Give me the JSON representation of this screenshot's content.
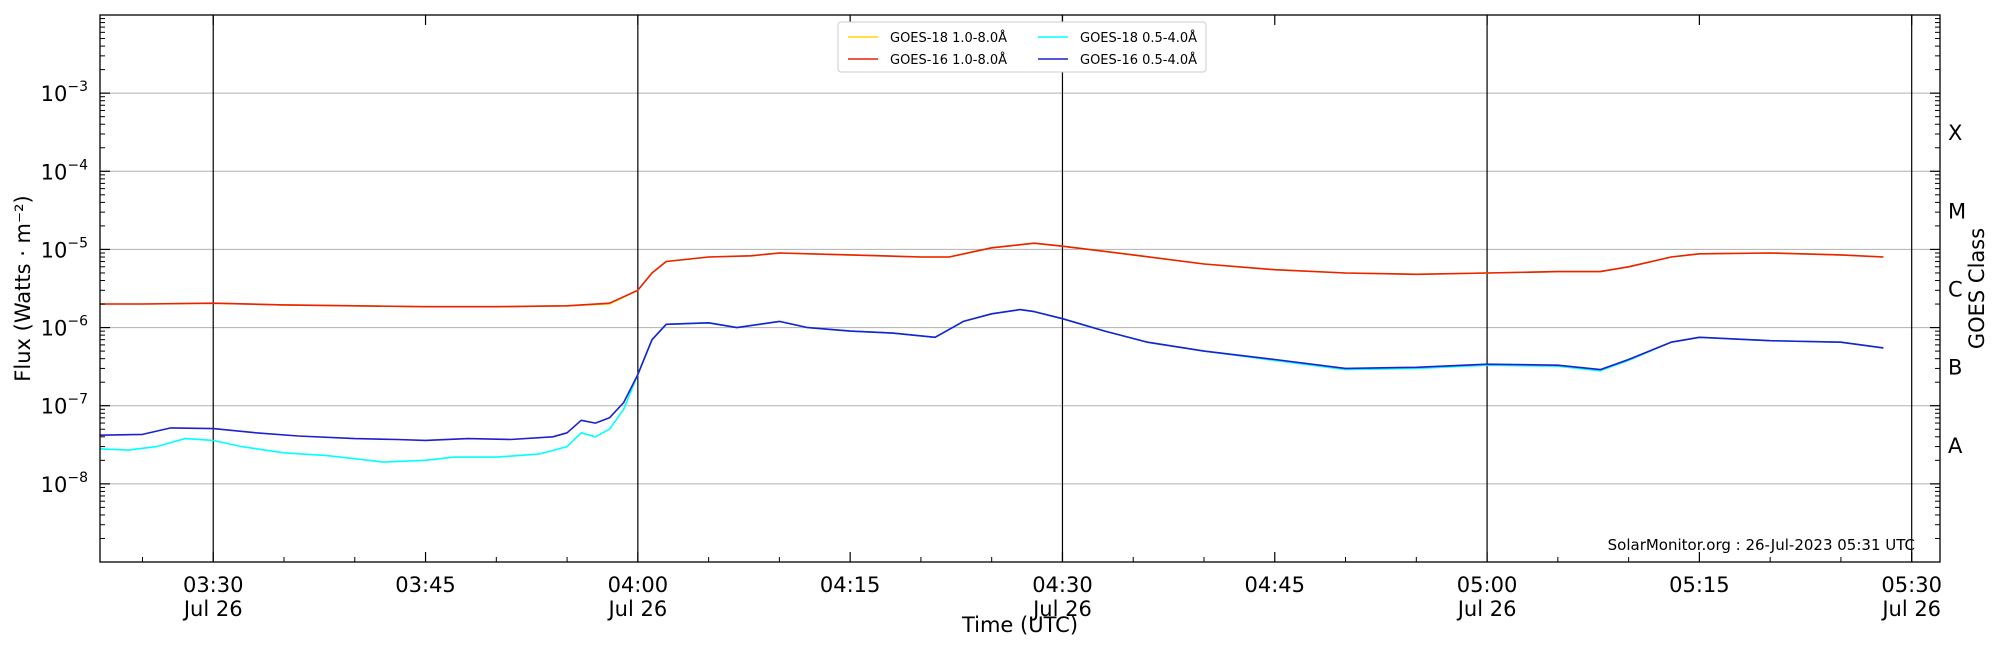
{
  "chart_data": {
    "type": "line",
    "xlabel": "Time (UTC)",
    "ylabel": "Flux (Watts · m⁻²)",
    "right_ylabel": "GOES Class",
    "credit": "SolarMonitor.org : 26-Jul-2023 05:31 UTC",
    "x_range": [
      "03:22",
      "05:32"
    ],
    "ylim": [
      1e-09,
      0.01
    ],
    "y_scale": "log",
    "grid": "horizontal at decades",
    "legend_position": "top-center",
    "x_ticks": [
      {
        "t": "03:30",
        "line1": "03:30",
        "line2": "Jul 26"
      },
      {
        "t": "03:45",
        "line1": "03:45",
        "line2": ""
      },
      {
        "t": "04:00",
        "line1": "04:00",
        "line2": "Jul 26"
      },
      {
        "t": "04:15",
        "line1": "04:15",
        "line2": ""
      },
      {
        "t": "04:30",
        "line1": "04:30",
        "line2": "Jul 26"
      },
      {
        "t": "04:45",
        "line1": "04:45",
        "line2": ""
      },
      {
        "t": "05:00",
        "line1": "05:00",
        "line2": "Jul 26"
      },
      {
        "t": "05:15",
        "line1": "05:15",
        "line2": ""
      },
      {
        "t": "05:30",
        "line1": "05:30",
        "line2": "Jul 26"
      }
    ],
    "day_lines": [
      "03:30",
      "04:00",
      "04:30",
      "05:00",
      "05:30"
    ],
    "y_ticks": [
      {
        "value": 1e-08,
        "base": "10",
        "exp": "−8"
      },
      {
        "value": 1e-07,
        "base": "10",
        "exp": "−7"
      },
      {
        "value": 1e-06,
        "base": "10",
        "exp": "−6"
      },
      {
        "value": 1e-05,
        "base": "10",
        "exp": "−5"
      },
      {
        "value": 0.0001,
        "base": "10",
        "exp": "−4"
      },
      {
        "value": 0.001,
        "base": "10",
        "exp": "−3"
      }
    ],
    "classes": [
      {
        "label": "A",
        "value": 3.16e-08
      },
      {
        "label": "B",
        "value": 3.16e-07
      },
      {
        "label": "C",
        "value": 3.16e-06
      },
      {
        "label": "M",
        "value": 3.16e-05
      },
      {
        "label": "X",
        "value": 0.000316
      }
    ],
    "series": [
      {
        "name": "GOES-18 1.0-8.0Å",
        "color": "#FFD700",
        "points": [
          [
            "03:22",
            2e-06
          ],
          [
            "03:25",
            2e-06
          ],
          [
            "03:30",
            2.05e-06
          ],
          [
            "03:35",
            1.95e-06
          ],
          [
            "03:40",
            1.9e-06
          ],
          [
            "03:45",
            1.85e-06
          ],
          [
            "03:50",
            1.85e-06
          ],
          [
            "03:55",
            1.9e-06
          ],
          [
            "03:58",
            2e-06
          ],
          [
            "04:00",
            3e-06
          ],
          [
            "04:01",
            5e-06
          ],
          [
            "04:02",
            7e-06
          ],
          [
            "04:05",
            8e-06
          ],
          [
            "04:08",
            8.3e-06
          ],
          [
            "04:10",
            9e-06
          ],
          [
            "04:15",
            8.5e-06
          ],
          [
            "04:20",
            8e-06
          ],
          [
            "04:22",
            8e-06
          ],
          [
            "04:25",
            1.05e-05
          ],
          [
            "04:28",
            1.2e-05
          ],
          [
            "04:30",
            1.1e-05
          ],
          [
            "04:35",
            8.5e-06
          ],
          [
            "04:40",
            6.5e-06
          ],
          [
            "04:45",
            5.5e-06
          ],
          [
            "04:50",
            5e-06
          ],
          [
            "04:55",
            4.8e-06
          ],
          [
            "05:00",
            5e-06
          ],
          [
            "05:05",
            5.2e-06
          ],
          [
            "05:08",
            5.2e-06
          ],
          [
            "05:10",
            6e-06
          ],
          [
            "05:13",
            8e-06
          ],
          [
            "05:15",
            8.8e-06
          ],
          [
            "05:20",
            9e-06
          ],
          [
            "05:25",
            8.5e-06
          ],
          [
            "05:28",
            8e-06
          ]
        ]
      },
      {
        "name": "GOES-18 0.5-4.0Å",
        "color": "#00FFFF",
        "points": [
          [
            "03:22",
            2.8e-08
          ],
          [
            "03:24",
            2.7e-08
          ],
          [
            "03:26",
            3e-08
          ],
          [
            "03:28",
            3.8e-08
          ],
          [
            "03:30",
            3.6e-08
          ],
          [
            "03:32",
            3e-08
          ],
          [
            "03:35",
            2.5e-08
          ],
          [
            "03:38",
            2.3e-08
          ],
          [
            "03:40",
            2.1e-08
          ],
          [
            "03:42",
            1.9e-08
          ],
          [
            "03:45",
            2e-08
          ],
          [
            "03:47",
            2.2e-08
          ],
          [
            "03:50",
            2.2e-08
          ],
          [
            "03:53",
            2.4e-08
          ],
          [
            "03:55",
            3e-08
          ],
          [
            "03:56",
            4.5e-08
          ],
          [
            "03:57",
            4e-08
          ],
          [
            "03:58",
            5e-08
          ],
          [
            "03:59",
            9e-08
          ],
          [
            "04:00",
            2.5e-07
          ],
          [
            "04:01",
            7e-07
          ],
          [
            "04:02",
            1.1e-06
          ],
          [
            "04:05",
            1.15e-06
          ],
          [
            "04:07",
            1e-06
          ],
          [
            "04:10",
            1.2e-06
          ],
          [
            "04:12",
            1e-06
          ],
          [
            "04:15",
            9e-07
          ],
          [
            "04:18",
            8.5e-07
          ],
          [
            "04:21",
            7.5e-07
          ],
          [
            "04:23",
            1.2e-06
          ],
          [
            "04:25",
            1.5e-06
          ],
          [
            "04:27",
            1.7e-06
          ],
          [
            "04:28",
            1.6e-06
          ],
          [
            "04:30",
            1.3e-06
          ],
          [
            "04:33",
            9e-07
          ],
          [
            "04:36",
            6.5e-07
          ],
          [
            "04:40",
            5e-07
          ],
          [
            "04:45",
            3.8e-07
          ],
          [
            "04:50",
            2.9e-07
          ],
          [
            "04:55",
            3e-07
          ],
          [
            "05:00",
            3.3e-07
          ],
          [
            "05:05",
            3.2e-07
          ],
          [
            "05:08",
            2.8e-07
          ],
          [
            "05:10",
            3.8e-07
          ],
          [
            "05:13",
            6.5e-07
          ],
          [
            "05:15",
            7.5e-07
          ],
          [
            "05:20",
            6.8e-07
          ],
          [
            "05:25",
            6.5e-07
          ],
          [
            "05:28",
            5.5e-07
          ]
        ]
      },
      {
        "name": "GOES-16 1.0-8.0Å",
        "color": "#E8220A",
        "points": [
          [
            "03:22",
            2e-06
          ],
          [
            "03:25",
            2e-06
          ],
          [
            "03:30",
            2.05e-06
          ],
          [
            "03:35",
            1.95e-06
          ],
          [
            "03:40",
            1.9e-06
          ],
          [
            "03:45",
            1.85e-06
          ],
          [
            "03:50",
            1.85e-06
          ],
          [
            "03:55",
            1.9e-06
          ],
          [
            "03:58",
            2.05e-06
          ],
          [
            "04:00",
            3e-06
          ],
          [
            "04:01",
            5e-06
          ],
          [
            "04:02",
            7e-06
          ],
          [
            "04:05",
            8e-06
          ],
          [
            "04:08",
            8.3e-06
          ],
          [
            "04:10",
            9e-06
          ],
          [
            "04:15",
            8.5e-06
          ],
          [
            "04:20",
            8e-06
          ],
          [
            "04:22",
            8e-06
          ],
          [
            "04:25",
            1.05e-05
          ],
          [
            "04:28",
            1.2e-05
          ],
          [
            "04:30",
            1.1e-05
          ],
          [
            "04:35",
            8.5e-06
          ],
          [
            "04:40",
            6.5e-06
          ],
          [
            "04:45",
            5.5e-06
          ],
          [
            "04:50",
            5e-06
          ],
          [
            "04:55",
            4.8e-06
          ],
          [
            "05:00",
            5e-06
          ],
          [
            "05:05",
            5.2e-06
          ],
          [
            "05:08",
            5.2e-06
          ],
          [
            "05:10",
            6e-06
          ],
          [
            "05:13",
            8e-06
          ],
          [
            "05:15",
            8.8e-06
          ],
          [
            "05:20",
            9e-06
          ],
          [
            "05:25",
            8.5e-06
          ],
          [
            "05:28",
            8e-06
          ]
        ]
      },
      {
        "name": "GOES-16 0.5-4.0Å",
        "color": "#1F1FCC",
        "points": [
          [
            "03:22",
            4.2e-08
          ],
          [
            "03:25",
            4.3e-08
          ],
          [
            "03:27",
            5.2e-08
          ],
          [
            "03:30",
            5.1e-08
          ],
          [
            "03:33",
            4.5e-08
          ],
          [
            "03:36",
            4.1e-08
          ],
          [
            "03:40",
            3.8e-08
          ],
          [
            "03:43",
            3.7e-08
          ],
          [
            "03:45",
            3.6e-08
          ],
          [
            "03:48",
            3.8e-08
          ],
          [
            "03:51",
            3.7e-08
          ],
          [
            "03:54",
            4e-08
          ],
          [
            "03:55",
            4.5e-08
          ],
          [
            "03:56",
            6.5e-08
          ],
          [
            "03:57",
            6e-08
          ],
          [
            "03:58",
            7e-08
          ],
          [
            "03:59",
            1.1e-07
          ],
          [
            "04:00",
            2.5e-07
          ],
          [
            "04:01",
            7e-07
          ],
          [
            "04:02",
            1.1e-06
          ],
          [
            "04:05",
            1.15e-06
          ],
          [
            "04:07",
            1e-06
          ],
          [
            "04:10",
            1.2e-06
          ],
          [
            "04:12",
            1e-06
          ],
          [
            "04:15",
            9e-07
          ],
          [
            "04:18",
            8.5e-07
          ],
          [
            "04:21",
            7.5e-07
          ],
          [
            "04:23",
            1.2e-06
          ],
          [
            "04:25",
            1.5e-06
          ],
          [
            "04:27",
            1.7e-06
          ],
          [
            "04:28",
            1.6e-06
          ],
          [
            "04:30",
            1.3e-06
          ],
          [
            "04:33",
            9e-07
          ],
          [
            "04:36",
            6.5e-07
          ],
          [
            "04:40",
            5e-07
          ],
          [
            "04:45",
            3.9e-07
          ],
          [
            "04:50",
            3e-07
          ],
          [
            "04:55",
            3.1e-07
          ],
          [
            "05:00",
            3.4e-07
          ],
          [
            "05:05",
            3.3e-07
          ],
          [
            "05:08",
            2.9e-07
          ],
          [
            "05:10",
            3.9e-07
          ],
          [
            "05:13",
            6.5e-07
          ],
          [
            "05:15",
            7.5e-07
          ],
          [
            "05:20",
            6.8e-07
          ],
          [
            "05:25",
            6.5e-07
          ],
          [
            "05:28",
            5.5e-07
          ]
        ]
      }
    ],
    "legend_order": [
      0,
      1,
      2,
      3
    ]
  }
}
